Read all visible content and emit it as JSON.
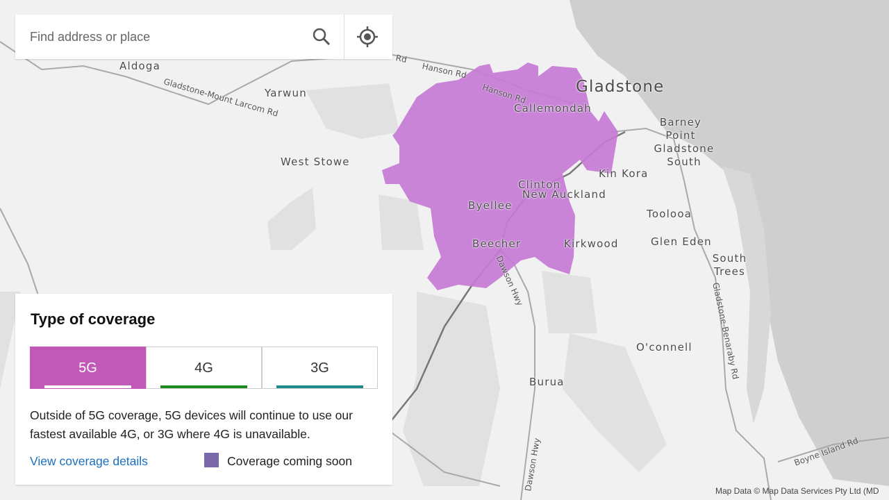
{
  "search": {
    "placeholder": "Find address or place"
  },
  "panel": {
    "title": "Type of coverage",
    "tabs": [
      "5G",
      "4G",
      "3G"
    ],
    "description": "Outside of 5G coverage, 5G devices will continue to use our fastest available 4G, or 3G where 4G is unavailable.",
    "link": "View coverage details",
    "legend": "Coverage coming soon"
  },
  "map": {
    "places": [
      "Aldoga",
      "Yarwun",
      "West Stowe",
      "Gladstone",
      "Callemondah",
      "Barney Point",
      "Gladstone South",
      "Kin Kora",
      "Clinton",
      "New Auckland",
      "Byellee",
      "Toolooa",
      "Beecher",
      "Kirkwood",
      "Glen Eden",
      "South Trees",
      "O'connell",
      "Burua"
    ],
    "roads": [
      "Hanson Rd",
      "Hanson Rd",
      "Gladstone-Mount Larcom Rd",
      "Dawson Hwy",
      "Dawson Hwy",
      "Gladstone-Benaraby Rd",
      "Boyne Island Rd"
    ],
    "attribution": "Map Data © Map Data Services Pty Ltd (MD"
  }
}
